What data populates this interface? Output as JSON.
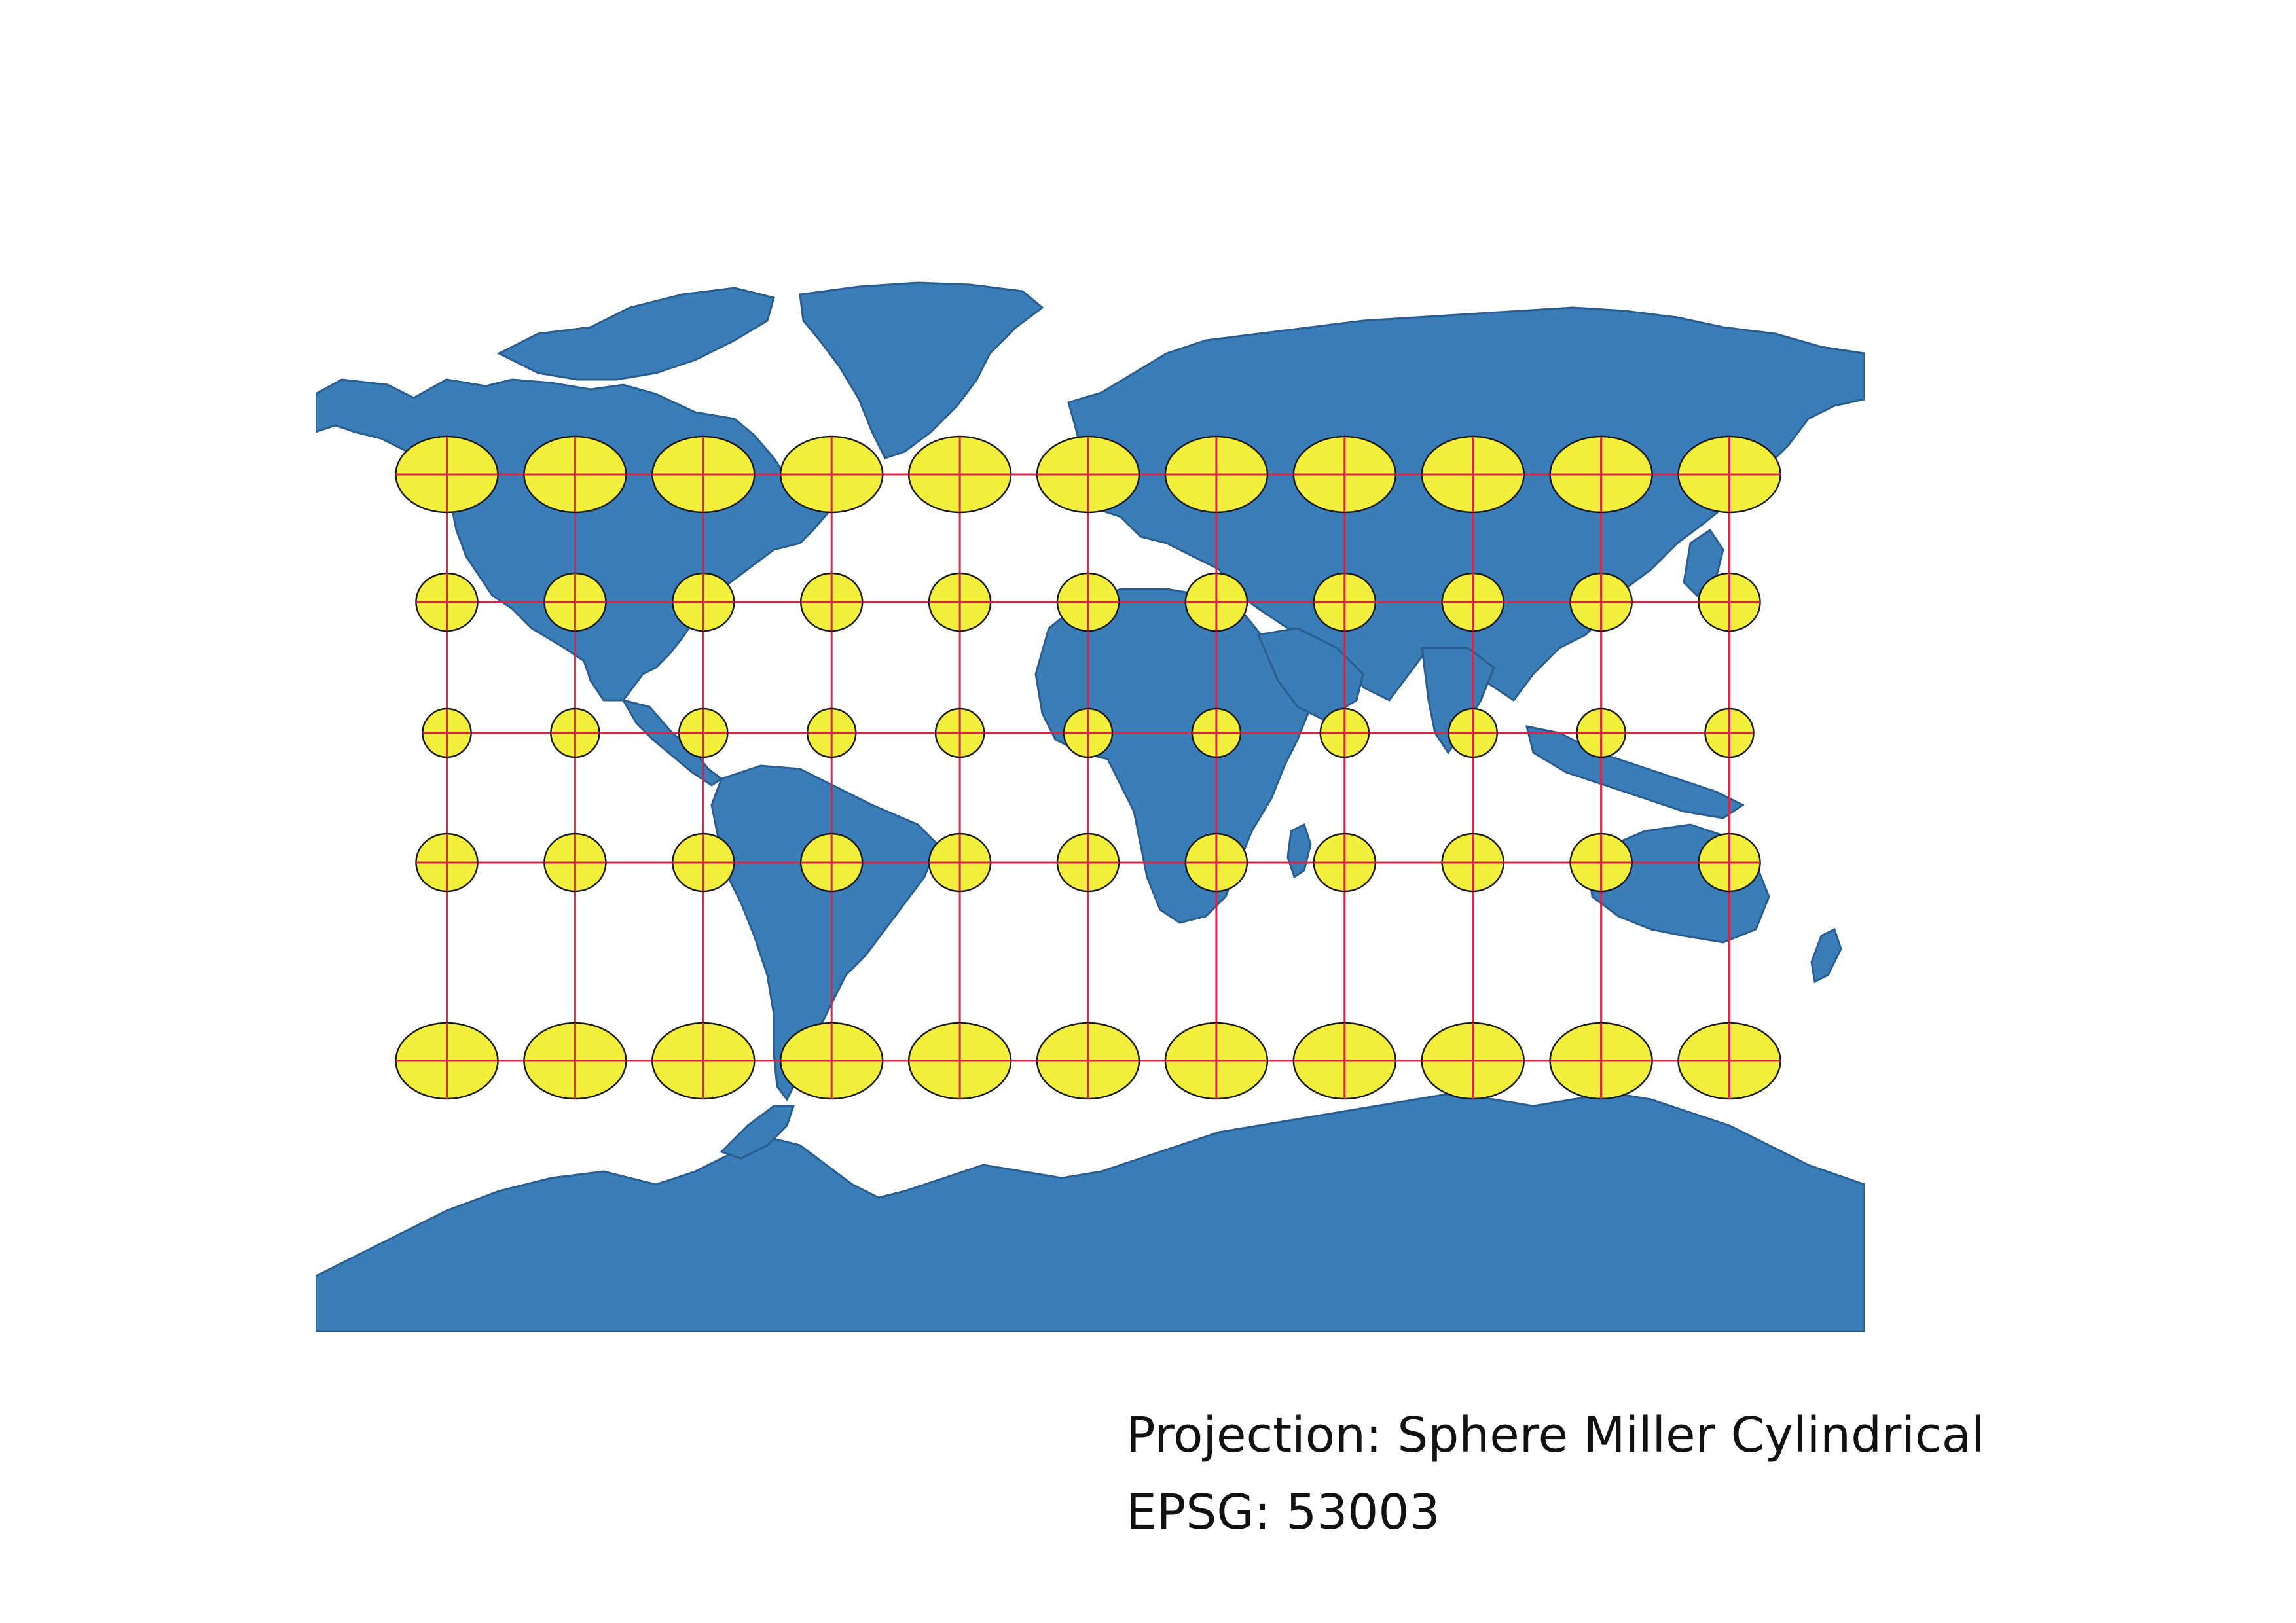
{
  "map": {
    "projection_label": "Projection: Sphere Miller Cylindrical",
    "epsg_label": "EPSG: 53003",
    "colors": {
      "ocean": "#ffffff",
      "land": "#3a7db7",
      "borders": "#2a5d8f",
      "graticule": "#d7264a",
      "tissot_fill": "#f2f03c",
      "tissot_stroke": "#1a1a1a"
    },
    "graticule_longitudes": [
      -150,
      -120,
      -90,
      -60,
      -30,
      0,
      30,
      60,
      90,
      120,
      150
    ],
    "graticule_latitudes": [
      60,
      30,
      0,
      -30,
      -60
    ],
    "tissot_indicatrix_count": 55
  }
}
